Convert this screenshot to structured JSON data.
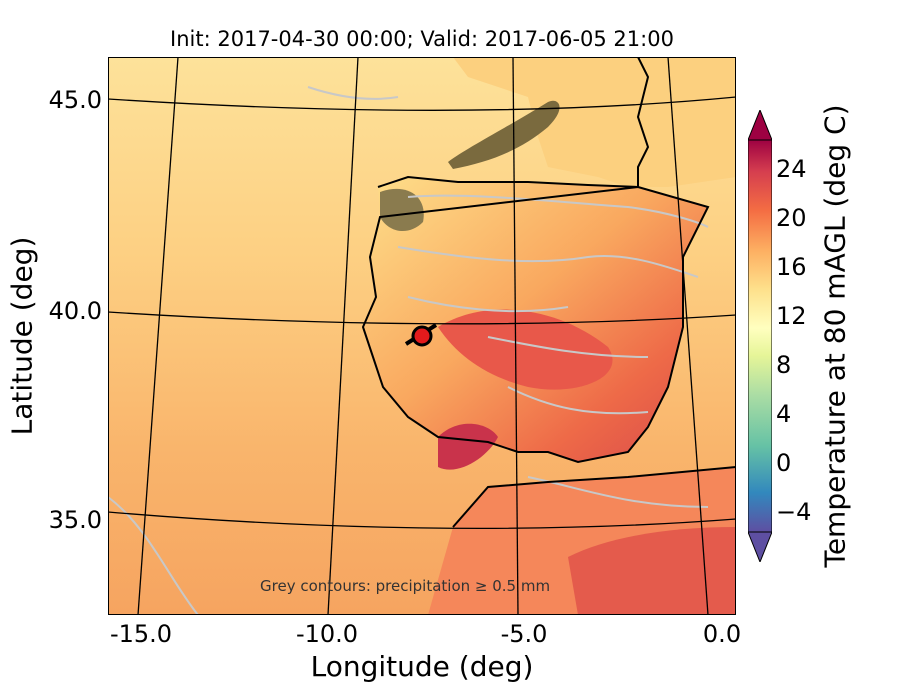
{
  "title": "Init: 2017-04-30 00:00; Valid: 2017-06-05 21:00",
  "axes": {
    "xlabel": "Longitude (deg)",
    "ylabel": "Latitude (deg)",
    "xticks": [
      "-15.0",
      "-10.0",
      "-5.0",
      "0.0"
    ],
    "yticks": [
      "45.0",
      "40.0",
      "35.0"
    ],
    "xlim": [
      -16,
      0.2
    ],
    "ylim": [
      32.8,
      46
    ]
  },
  "note": "Grey contours: precipitation ≥ 0.5 mm",
  "colorbar": {
    "label": "Temperature at 80 mAGL (deg C)",
    "ticks": [
      "24",
      "20",
      "16",
      "12",
      "8",
      "4",
      "0",
      "−4"
    ],
    "range": [
      -6,
      26
    ],
    "colormap": "Spectral_r",
    "colors": [
      "#5e4fa2",
      "#3288bd",
      "#66c2a5",
      "#abdda4",
      "#e6f598",
      "#ffffbf",
      "#fee08b",
      "#fdae61",
      "#f46d43",
      "#d53e4f",
      "#9e0142"
    ]
  },
  "marker": {
    "lon": -7.5,
    "lat": 39.4,
    "color": "#e31a1c"
  },
  "map_colors": {
    "ocean": "#f9b56c",
    "ocean_north": "#fde29a",
    "land_hot": "#e5534b",
    "land_warm": "#f68e5a",
    "mountain": "#7a6a3e",
    "precip_contour": "#c8c8c8"
  }
}
